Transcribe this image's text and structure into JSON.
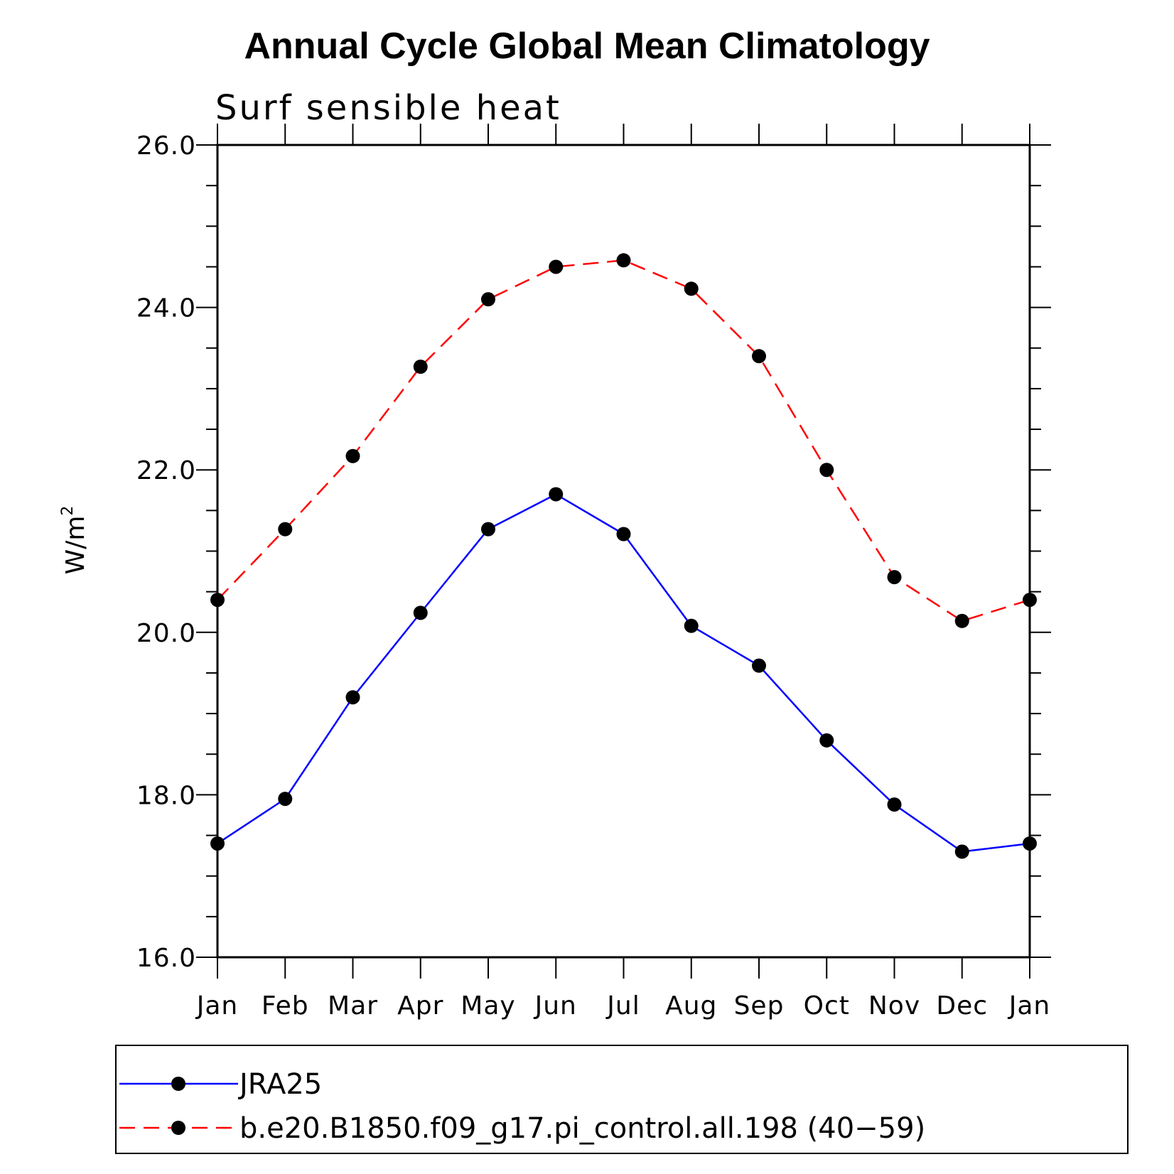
{
  "chart_data": {
    "type": "line",
    "title": "Annual Cycle Global Mean Climatology",
    "subtitle": "Surf sensible heat",
    "ylabel": "W/m",
    "ylabel_superscript": "2",
    "xlabel": "",
    "ylim": [
      16.0,
      26.0
    ],
    "y_major_ticks": [
      "16.0",
      "18.0",
      "20.0",
      "22.0",
      "24.0",
      "26.0"
    ],
    "y_minor_step": 0.5,
    "grid": false,
    "legend_position": "bottom",
    "categories": [
      "Jan",
      "Feb",
      "Mar",
      "Apr",
      "May",
      "Jun",
      "Jul",
      "Aug",
      "Sep",
      "Oct",
      "Nov",
      "Dec",
      "Jan"
    ],
    "series": [
      {
        "name": "JRA25",
        "color": "#0000ff",
        "line_style": "solid",
        "marker": "filled-circle",
        "values": [
          17.4,
          17.95,
          19.2,
          20.24,
          21.27,
          21.7,
          21.21,
          20.08,
          19.59,
          18.67,
          17.88,
          17.3,
          17.4
        ]
      },
      {
        "name": "b.e20.B1850.f09_g17.pi_control.all.198 (40−59)",
        "color": "#ff0000",
        "line_style": "dashed",
        "marker": "filled-circle",
        "values": [
          20.4,
          21.27,
          22.17,
          23.27,
          24.1,
          24.5,
          24.58,
          24.23,
          23.4,
          22.0,
          20.68,
          20.14,
          20.4
        ]
      }
    ]
  }
}
